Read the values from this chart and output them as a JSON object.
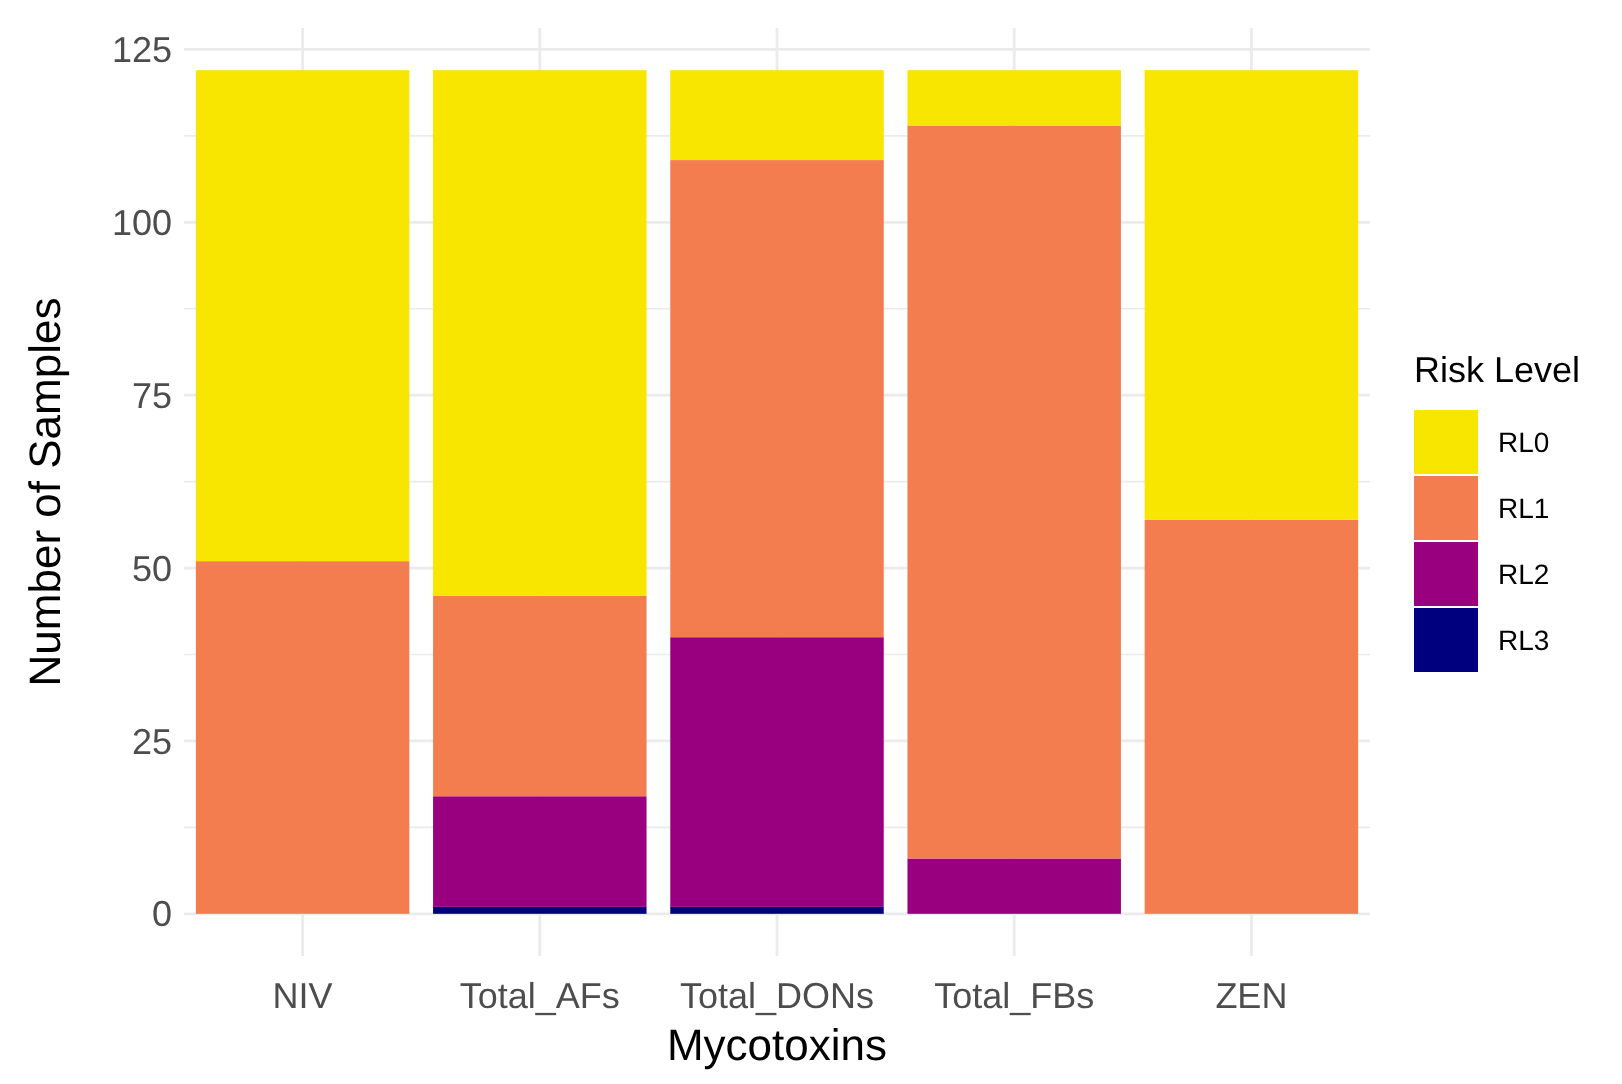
{
  "chart_data": {
    "type": "bar",
    "xlabel": "Mycotoxins",
    "ylabel": "Number of Samples",
    "legend_title": "Risk Level",
    "categories": [
      "NIV",
      "Total_AFs",
      "Total_DONs",
      "Total_FBs",
      "ZEN"
    ],
    "stacked": true,
    "series": [
      {
        "name": "RL3",
        "color": "#00007f",
        "values": [
          0,
          1,
          1,
          0,
          0
        ]
      },
      {
        "name": "RL2",
        "color": "#990080",
        "values": [
          0,
          16,
          39,
          8,
          0
        ]
      },
      {
        "name": "RL1",
        "color": "#f47d50",
        "values": [
          51,
          29,
          69,
          106,
          57
        ]
      },
      {
        "name": "RL0",
        "color": "#f8e500",
        "values": [
          71,
          76,
          13,
          8,
          65
        ]
      }
    ],
    "ylim": [
      -6.1,
      128.1
    ],
    "yticks": [
      0,
      {
        "value": 12.5,
        "label": null
      },
      25,
      {
        "value": 37.5,
        "label": null
      },
      50,
      {
        "value": 62.5,
        "label": null
      },
      75,
      {
        "value": 87.5,
        "label": null
      },
      100,
      {
        "value": 112.5,
        "label": null
      },
      125
    ],
    "grid": true,
    "legend": "right"
  }
}
